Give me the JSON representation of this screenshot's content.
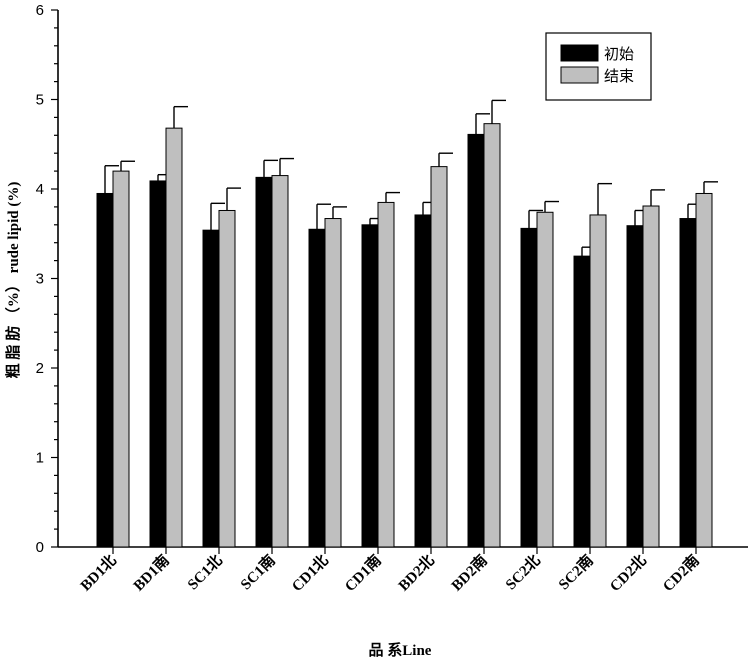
{
  "chart_data": {
    "type": "bar",
    "title": "",
    "xlabel": "品 系Line",
    "ylabel": "粗 脂 肪 （%） rude lipid (%)",
    "ylim": [
      0,
      6
    ],
    "yticks": [
      "0",
      "1",
      "2",
      "3",
      "4",
      "5",
      "6"
    ],
    "categories": [
      "BD1北",
      "BD1南",
      "SC1北",
      "SC1南",
      "CD1北",
      "CD1南",
      "BD2北",
      "BD2南",
      "SC2北",
      "SC2南",
      "CD2北",
      "CD2南"
    ],
    "series": [
      {
        "name": "初始",
        "color": "#000000",
        "values": [
          3.95,
          4.09,
          3.54,
          4.13,
          3.55,
          3.6,
          3.71,
          4.61,
          3.56,
          3.25,
          3.59,
          3.67
        ],
        "errors": [
          0.31,
          0.07,
          0.3,
          0.19,
          0.28,
          0.07,
          0.14,
          0.23,
          0.2,
          0.1,
          0.17,
          0.16
        ]
      },
      {
        "name": "结束",
        "color": "#bfbfbf",
        "values": [
          4.2,
          4.68,
          3.76,
          4.15,
          3.67,
          3.85,
          4.25,
          4.73,
          3.74,
          3.71,
          3.81,
          3.95
        ],
        "errors": [
          0.11,
          0.24,
          0.25,
          0.19,
          0.13,
          0.11,
          0.15,
          0.26,
          0.12,
          0.35,
          0.18,
          0.13
        ]
      }
    ],
    "legend": {
      "position": "top-right",
      "labels": [
        "初始",
        "结束"
      ]
    }
  }
}
